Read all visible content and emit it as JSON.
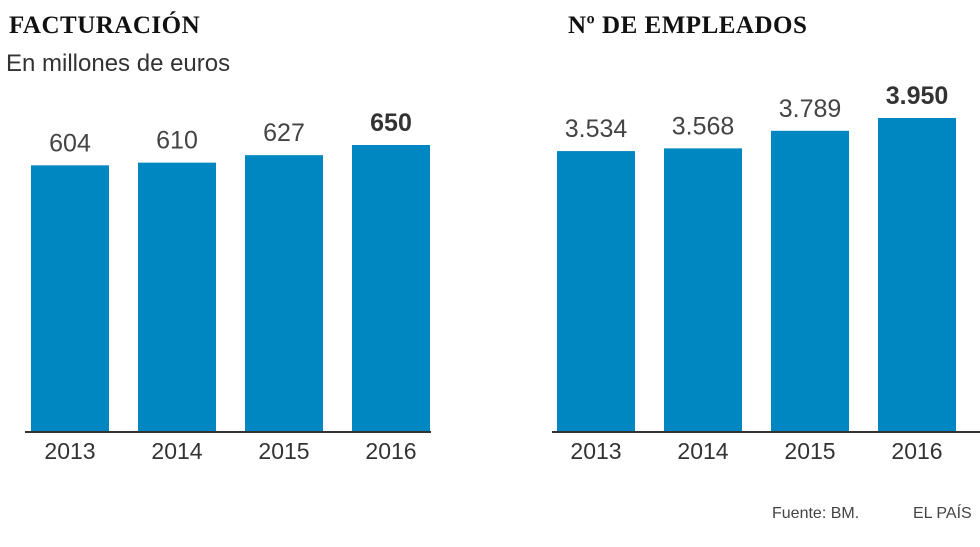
{
  "charts": [
    {
      "title": "FACTURACIÓN",
      "subtitle": "En millones de euros"
    },
    {
      "title": "Nº DE EMPLEADOS"
    }
  ],
  "footer": {
    "source": "Fuente: BM.",
    "brand": "EL PAÍS"
  },
  "colors": {
    "bar": "#0087c1",
    "axis": "#333333",
    "value_text": "#444444",
    "highlight_text": "#333333"
  },
  "chart_data": [
    {
      "type": "bar",
      "title": "FACTURACIÓN",
      "subtitle": "En millones de euros",
      "categories": [
        "2013",
        "2014",
        "2015",
        "2016"
      ],
      "values": [
        604,
        610,
        627,
        650
      ],
      "value_labels": [
        "604",
        "610",
        "627",
        "650"
      ],
      "highlight_index": 3,
      "ylim": [
        0,
        650
      ],
      "grid": false,
      "legend": "none"
    },
    {
      "type": "bar",
      "title": "Nº DE EMPLEADOS",
      "categories": [
        "2013",
        "2014",
        "2015",
        "2016"
      ],
      "values": [
        3534,
        3568,
        3789,
        3950
      ],
      "value_labels": [
        "3.534",
        "3.568",
        "3.789",
        "3.950"
      ],
      "highlight_index": 3,
      "ylim": [
        0,
        3950
      ],
      "grid": false,
      "legend": "none"
    }
  ]
}
